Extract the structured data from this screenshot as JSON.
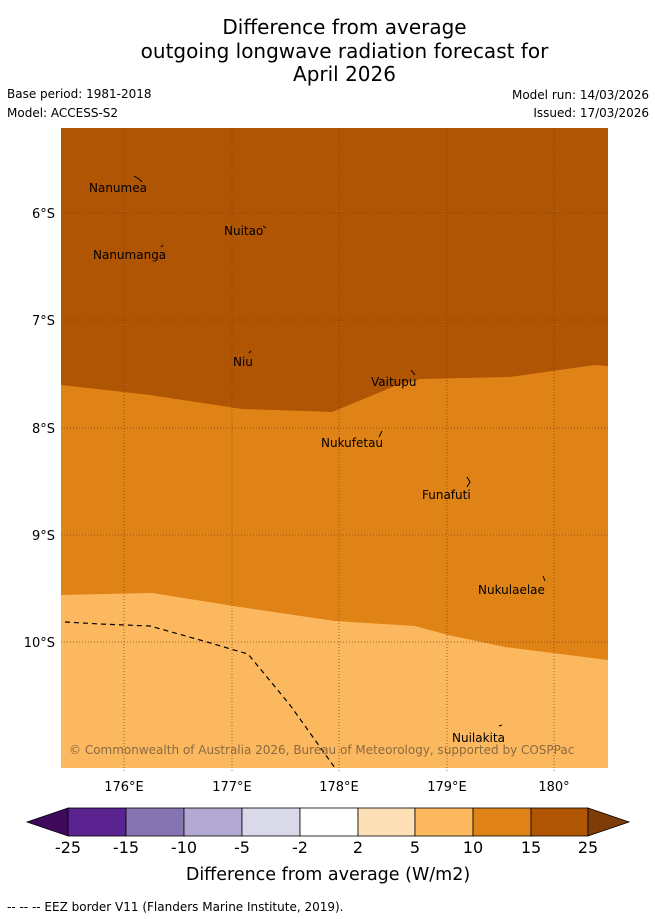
{
  "header": {
    "title_line1": "Difference from average",
    "title_line2": "outgoing longwave radiation forecast for",
    "title_line3": "April 2026",
    "base_period": "Base period: 1981-2018",
    "model": "Model: ACCESS-S2",
    "model_run": "Model run: 14/03/2026",
    "issued": "Issued: 17/03/2026"
  },
  "map": {
    "lat_labels": [
      "6°S",
      "7°S",
      "8°S",
      "9°S",
      "10°S"
    ],
    "lon_labels": [
      "176°E",
      "177°E",
      "178°E",
      "179°E",
      "180°"
    ],
    "places": [
      "Nanumea",
      "Nuitao",
      "Nanumanga",
      "Niu",
      "Vaitupu",
      "Nukufetau",
      "Funafuti",
      "Nukulaelae",
      "Nuilakita"
    ],
    "copyright": "© Commonwealth of Australia 2026, Bureau of Meteorology, supported by COSPPac",
    "zone_colors": {
      "above_15": "#b05504",
      "10_to_15": "#e08316",
      "5_to_10": "#fcb85f"
    }
  },
  "colorbar": {
    "ticks": [
      "-25",
      "-15",
      "-10",
      "-5",
      "-2",
      "2",
      "5",
      "10",
      "15",
      "25"
    ],
    "colors": [
      "#3f0a5c",
      "#5a2390",
      "#8674b0",
      "#b2a8d3",
      "#d9d9ea",
      "#ffffff",
      "#fde0b5",
      "#fcb85f",
      "#e08316",
      "#b05504",
      "#7e3c06"
    ],
    "label": "Difference from average (W/m2)"
  },
  "footer": {
    "legend": "--  --  -- EEZ border V11 (Flanders Marine Institute, 2019)."
  }
}
